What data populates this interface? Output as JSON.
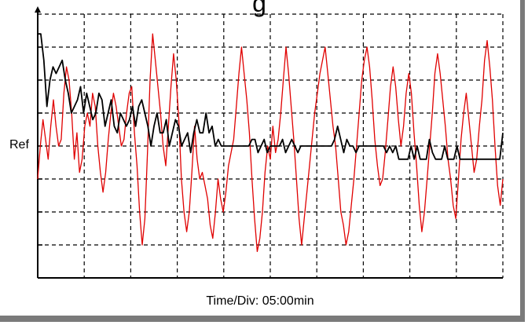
{
  "header": {
    "title_fragment": "g"
  },
  "chart_data": {
    "type": "line",
    "title": "",
    "xlabel": "Time/Div: 05:00min",
    "ylabel": "",
    "y_reference_label": "Ref",
    "grid": true,
    "x_divisions": 10,
    "y_divisions": 8,
    "xlim": [
      0,
      120
    ],
    "ylim": [
      0,
      8
    ],
    "series": [
      {
        "color": "#e00000",
        "values": [
          3.0,
          4.0,
          4.8,
          4.2,
          3.6,
          4.6,
          5.4,
          4.6,
          4.0,
          4.2,
          5.6,
          6.4,
          6.0,
          5.0,
          3.6,
          4.4,
          3.2,
          3.6,
          4.6,
          5.0,
          4.6,
          5.6,
          5.2,
          4.0,
          3.2,
          2.6,
          3.2,
          4.2,
          5.0,
          5.6,
          5.2,
          4.6,
          4.0,
          4.2,
          5.0,
          5.6,
          5.8,
          4.4,
          3.4,
          2.0,
          1.0,
          1.8,
          3.8,
          6.0,
          7.4,
          6.6,
          5.8,
          5.0,
          4.0,
          3.4,
          4.6,
          5.8,
          6.8,
          6.0,
          4.8,
          3.0,
          2.0,
          1.4,
          2.0,
          3.2,
          4.6,
          3.6,
          3.0,
          3.2,
          2.8,
          2.4,
          1.6,
          1.2,
          2.0,
          3.0,
          2.4,
          2.0,
          2.6,
          3.4,
          3.8,
          4.2,
          5.2,
          6.2,
          7.0,
          6.2,
          5.4,
          4.4,
          3.0,
          1.8,
          0.8,
          1.2,
          2.0,
          3.2,
          4.0,
          3.6,
          4.6,
          3.8,
          4.2,
          5.0,
          6.0,
          7.0,
          6.2,
          5.2,
          4.2,
          3.0,
          1.8,
          1.0,
          1.8,
          2.6,
          3.4,
          4.2,
          5.0,
          5.6,
          6.2,
          6.6,
          7.0,
          6.2,
          5.4,
          4.6,
          4.0,
          3.0,
          2.0,
          1.6,
          1.0,
          1.4,
          2.2,
          3.0,
          4.0,
          5.0,
          6.0,
          6.6,
          7.0,
          6.4,
          5.4,
          4.2,
          3.4,
          2.8,
          3.0,
          3.8,
          4.8,
          5.8,
          6.4,
          5.8,
          4.8,
          4.0,
          4.6,
          5.6,
          6.2,
          5.6,
          4.4,
          3.4,
          2.2,
          1.4,
          2.0,
          3.0,
          4.0,
          5.0,
          6.2,
          6.8,
          6.2,
          5.4,
          4.6,
          3.6,
          3.0,
          2.2,
          1.8,
          3.0,
          4.2,
          5.0,
          5.6,
          4.8,
          4.0,
          3.2,
          3.6,
          4.6,
          5.4,
          6.6,
          7.2,
          6.4,
          5.4,
          4.0,
          2.8,
          2.2,
          3.0
        ]
      },
      {
        "color": "#000000",
        "values": [
          7.4,
          7.4,
          6.6,
          5.2,
          6.0,
          6.4,
          6.2,
          6.4,
          6.6,
          6.0,
          5.6,
          5.0,
          5.2,
          5.4,
          5.8,
          5.0,
          5.6,
          5.2,
          4.8,
          5.0,
          5.6,
          5.4,
          4.6,
          5.0,
          5.4,
          4.6,
          4.4,
          5.0,
          4.8,
          4.6,
          4.8,
          5.2,
          4.6,
          5.2,
          5.4,
          5.0,
          4.6,
          4.0,
          4.6,
          5.0,
          4.4,
          4.4,
          4.8,
          4.0,
          4.4,
          4.8,
          4.6,
          4.0,
          4.2,
          4.4,
          3.8,
          4.4,
          4.8,
          4.4,
          4.4,
          5.0,
          4.4,
          4.6,
          4.0,
          4.2,
          4.0,
          4.0,
          4.0,
          4.0,
          4.0,
          4.0,
          4.0,
          4.0,
          4.0,
          4.0,
          4.2,
          4.2,
          3.8,
          4.0,
          4.2,
          3.8,
          4.0,
          4.0,
          4.0,
          4.0,
          4.2,
          3.8,
          4.0,
          4.2,
          4.0,
          3.8,
          4.0,
          4.0,
          4.0,
          4.0,
          4.0,
          4.0,
          4.0,
          4.0,
          4.0,
          4.0,
          4.0,
          4.2,
          4.6,
          4.2,
          3.8,
          4.2,
          4.0,
          4.0,
          3.8,
          4.0,
          4.0,
          4.0,
          4.0,
          4.0,
          4.0,
          4.0,
          4.0,
          4.0,
          3.8,
          4.0,
          3.8,
          4.0,
          3.6,
          3.6,
          3.6,
          3.6,
          4.0,
          3.6,
          4.0,
          3.6,
          3.6,
          3.6,
          4.2,
          3.8,
          3.6,
          3.6,
          3.6,
          4.0,
          3.6,
          3.6,
          3.6,
          4.0,
          3.6,
          3.6,
          3.6,
          3.6,
          3.6,
          3.6,
          3.6,
          3.6,
          3.6,
          3.6,
          3.6,
          3.6,
          3.6,
          3.6,
          4.4
        ]
      }
    ]
  }
}
